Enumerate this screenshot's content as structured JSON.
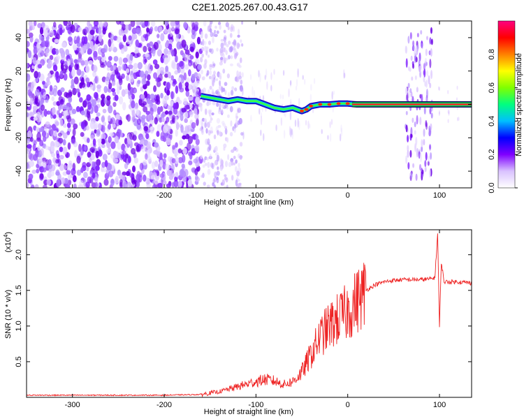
{
  "title": "C2E1.2025.267.00.43.G17",
  "chart_data": [
    {
      "type": "heatmap",
      "xlabel": "Height of straight line (km)",
      "ylabel": "Frequency (Hz)",
      "xlim": [
        -350,
        135
      ],
      "ylim": [
        -50,
        50
      ],
      "xticks": [
        -300,
        -200,
        -100,
        0,
        100
      ],
      "yticks": [
        -40,
        -20,
        0,
        20,
        40
      ],
      "colorbar": {
        "label": "Normalized spectral amplitude",
        "range": [
          0,
          1
        ],
        "ticks": [
          "0.0",
          "0.2",
          "0.4",
          "0.6",
          "0.8"
        ],
        "colors": [
          "#ffffff",
          "#d9c2ff",
          "#7f00ff",
          "#0000ff",
          "#00bfff",
          "#00ff80",
          "#80ff00",
          "#ffff00",
          "#ff8000",
          "#ff0000",
          "#ff0080"
        ]
      },
      "line": {
        "x": [
          -160,
          -150,
          -140,
          -130,
          -120,
          -110,
          -100,
          -90,
          -80,
          -70,
          -60,
          -50,
          -45,
          -40,
          -30,
          -20,
          -10,
          0,
          10,
          30,
          60,
          70,
          80,
          90,
          100,
          110,
          120,
          135
        ],
        "y": [
          5,
          4,
          3,
          2,
          3,
          2,
          2,
          0,
          -2,
          -3,
          -2,
          -4,
          -3,
          -1,
          0,
          0,
          0.5,
          0.5,
          0,
          0,
          0,
          0,
          0,
          0,
          0,
          0,
          0,
          0
        ]
      }
    },
    {
      "type": "line",
      "xlabel": "Height of straight line (km)",
      "ylabel": "SNR (10 * v/v)",
      "y_multiplier": "(x10",
      "y_multiplier_exp": "4",
      "y_multiplier_close": ")",
      "xlim": [
        -350,
        135
      ],
      "ylim": [
        0,
        2.35
      ],
      "xticks": [
        -300,
        -200,
        -100,
        0,
        100
      ],
      "yticks": [
        "0.5",
        "1.0",
        "1.5",
        "2.0"
      ],
      "series": [
        {
          "color": "#ee2222",
          "x": [
            -350,
            -300,
            -250,
            -200,
            -160,
            -140,
            -120,
            -100,
            -90,
            -80,
            -70,
            -60,
            -50,
            -40,
            -30,
            -20,
            -10,
            0,
            10,
            20,
            30,
            40,
            50,
            60,
            70,
            80,
            90,
            95,
            98,
            100,
            102,
            105,
            110,
            120,
            130,
            135
          ],
          "y": [
            0.03,
            0.03,
            0.03,
            0.03,
            0.04,
            0.08,
            0.15,
            0.22,
            0.25,
            0.23,
            0.18,
            0.22,
            0.35,
            0.6,
            0.85,
            1.0,
            1.1,
            1.2,
            1.35,
            1.5,
            1.58,
            1.62,
            1.64,
            1.65,
            1.65,
            1.65,
            1.66,
            1.68,
            2.3,
            0.98,
            1.9,
            1.62,
            1.62,
            1.62,
            1.61,
            1.6
          ]
        }
      ]
    }
  ]
}
